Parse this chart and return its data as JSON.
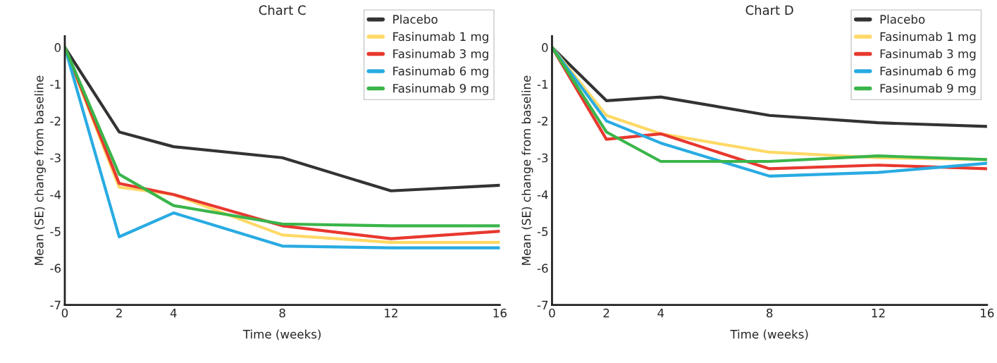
{
  "chart_data": [
    {
      "type": "line",
      "title": "Chart C",
      "xlabel": "Time (weeks)",
      "ylabel": "Mean (SE) change from baseline",
      "x": [
        0,
        2,
        4,
        8,
        12,
        16
      ],
      "xlim": [
        0,
        16
      ],
      "xticks": [
        0,
        2,
        4,
        8,
        12,
        16
      ],
      "ylim": [
        -7,
        0.3
      ],
      "yticks": [
        {
          "value": 0,
          "label": "0"
        },
        {
          "value": -1,
          "label": "-1"
        },
        {
          "value": -2,
          "label": "-2"
        },
        {
          "value": -3,
          "label": "-3"
        },
        {
          "value": -4,
          "label": "-4"
        },
        {
          "value": -5,
          "label": "-5"
        },
        {
          "value": -6,
          "label": "-6"
        },
        {
          "value": -7,
          "label": "-7"
        }
      ],
      "grid": false,
      "legend": "top right",
      "marker": "none",
      "line_style": "solid",
      "series": [
        {
          "name": "Placebo",
          "color": "#333333",
          "values": [
            0,
            -2.3,
            -2.7,
            -3.0,
            -3.9,
            -3.75
          ]
        },
        {
          "name": "Fasinumab 1 mg",
          "color": "#ffd966",
          "values": [
            0,
            -3.8,
            -4.0,
            -5.1,
            -5.3,
            -5.3
          ]
        },
        {
          "name": "Fasinumab 3 mg",
          "color": "#e8382f",
          "values": [
            0,
            -3.7,
            -4.0,
            -4.85,
            -5.2,
            -5.0
          ]
        },
        {
          "name": "Fasinumab 6 mg",
          "color": "#29abe2",
          "values": [
            0,
            -5.15,
            -4.5,
            -5.4,
            -5.45,
            -5.45
          ]
        },
        {
          "name": "Fasinumab 9 mg",
          "color": "#3ab54a",
          "values": [
            0,
            -3.45,
            -4.3,
            -4.8,
            -4.85,
            -4.85
          ]
        }
      ]
    },
    {
      "type": "line",
      "title": "Chart D",
      "xlabel": "Time (weeks)",
      "ylabel": "Mean (SE) change from baseline",
      "x": [
        0,
        2,
        4,
        8,
        12,
        16
      ],
      "xlim": [
        0,
        16
      ],
      "xticks": [
        0,
        2,
        4,
        8,
        12,
        16
      ],
      "ylim": [
        -7,
        0.3
      ],
      "yticks": [
        {
          "value": 0,
          "label": "0"
        },
        {
          "value": -1,
          "label": "-1"
        },
        {
          "value": -2,
          "label": "-2"
        },
        {
          "value": -3,
          "label": "-3"
        },
        {
          "value": -4,
          "label": "-4"
        },
        {
          "value": -5,
          "label": "-5"
        },
        {
          "value": -6,
          "label": "-6"
        },
        {
          "value": -7,
          "label": "-7"
        }
      ],
      "grid": false,
      "legend": "top right",
      "marker": "none",
      "line_style": "solid",
      "series": [
        {
          "name": "Placebo",
          "color": "#333333",
          "values": [
            0,
            -1.45,
            -1.35,
            -1.85,
            -2.05,
            -2.15
          ]
        },
        {
          "name": "Fasinumab 1 mg",
          "color": "#ffd966",
          "values": [
            0,
            -1.85,
            -2.35,
            -2.85,
            -3.0,
            -3.05
          ]
        },
        {
          "name": "Fasinumab 3 mg",
          "color": "#e8382f",
          "values": [
            0,
            -2.5,
            -2.35,
            -3.3,
            -3.2,
            -3.3
          ]
        },
        {
          "name": "Fasinumab 6 mg",
          "color": "#29abe2",
          "values": [
            0,
            -2.0,
            -2.6,
            -3.5,
            -3.4,
            -3.15
          ]
        },
        {
          "name": "Fasinumab 9 mg",
          "color": "#3ab54a",
          "values": [
            0,
            -2.3,
            -3.1,
            -3.1,
            -2.95,
            -3.05
          ]
        }
      ]
    }
  ]
}
